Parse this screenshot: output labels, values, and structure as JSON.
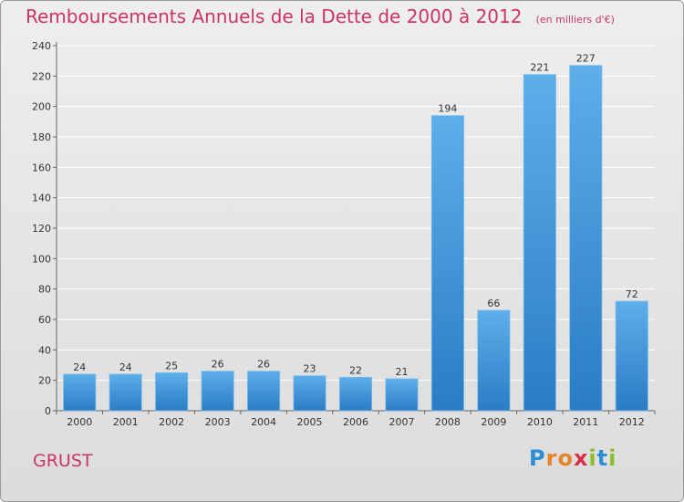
{
  "header": {
    "title": "Remboursements Annuels de la Dette de 2000 à 2012",
    "unit": "(en milliers d'€)"
  },
  "footer": {
    "commune": "GRUST",
    "brand_letters": [
      "P",
      "r",
      "o",
      "x",
      "i",
      "t",
      "i"
    ]
  },
  "colors": {
    "title": "#cc3366",
    "bar_light": "#5aa8e6",
    "bar_dark": "#2a7cc4",
    "grid": "#ffffff"
  },
  "chart_data": {
    "type": "bar",
    "title": "Remboursements Annuels de la Dette de 2000 à 2012",
    "subtitle": "(en milliers d'€)",
    "xlabel": "",
    "ylabel": "",
    "categories": [
      "2000",
      "2001",
      "2002",
      "2003",
      "2004",
      "2005",
      "2006",
      "2007",
      "2008",
      "2009",
      "2010",
      "2011",
      "2012"
    ],
    "values": [
      24,
      24,
      25,
      26,
      26,
      23,
      22,
      21,
      194,
      66,
      221,
      227,
      72
    ],
    "ylim": [
      0,
      240
    ],
    "yticks": [
      0,
      20,
      40,
      60,
      80,
      100,
      120,
      140,
      160,
      180,
      200,
      220,
      240
    ],
    "grid": true,
    "legend": "none"
  }
}
